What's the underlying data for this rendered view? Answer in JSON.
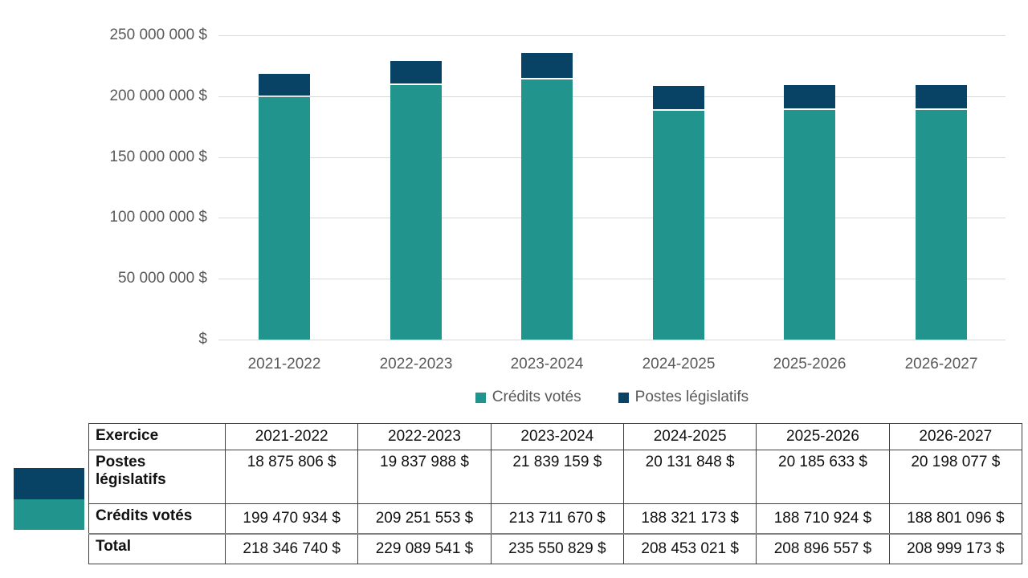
{
  "chart_data": {
    "type": "bar",
    "stacked": true,
    "title": "",
    "xlabel": "",
    "ylabel": "",
    "categories": [
      "2021-2022",
      "2022-2023",
      "2023-2024",
      "2024-2025",
      "2025-2026",
      "2026-2027"
    ],
    "series": [
      {
        "name": "Crédits votés",
        "color": "#21948E",
        "values": [
          199470934,
          209251553,
          213711670,
          188321173,
          188710924,
          188801096
        ]
      },
      {
        "name": "Postes législatifs",
        "color": "#084264",
        "values": [
          18875806,
          19837988,
          21839159,
          20131848,
          20185633,
          20198077
        ]
      }
    ],
    "totals": [
      218346740,
      229089541,
      235550829,
      208453021,
      208896557,
      208999173
    ],
    "ylim": [
      0,
      250000000
    ],
    "y_tick_labels": [
      "250 000 000 $",
      "200 000 000 $",
      "150 000 000 $",
      "100 000 000 $",
      "50 000 000 $",
      "$"
    ],
    "grid": true,
    "legend_position": "bottom"
  },
  "table": {
    "header": [
      "Exercice",
      "2021-2022",
      "2022-2023",
      "2023-2024",
      "2024-2025",
      "2025-2026",
      "2026-2027"
    ],
    "rows": [
      {
        "key": "postes-legislatifs",
        "label": "Postes législatifs",
        "values": [
          "18 875 806 $",
          "19 837 988 $",
          "21 839 159 $",
          "20 131 848 $",
          "20 185 633 $",
          "20 198 077 $"
        ]
      },
      {
        "key": "credits-votes",
        "label": "Crédits votés",
        "values": [
          "199 470 934 $",
          "209 251 553 $",
          "213 711 670 $",
          "188 321 173 $",
          "188 710 924 $",
          "188 801 096 $"
        ]
      },
      {
        "key": "total",
        "label": "Total",
        "values": [
          "218 346 740 $",
          "229 089 541 $",
          "235 550 829 $",
          "208 453 021 $",
          "208 896 557 $",
          "208 999 173 $"
        ]
      }
    ]
  },
  "colors": {
    "teal": "#21948E",
    "navy": "#084264",
    "gridline": "#d9d9d9",
    "axis_text": "#595959",
    "table_border": "#3f3f3f"
  }
}
